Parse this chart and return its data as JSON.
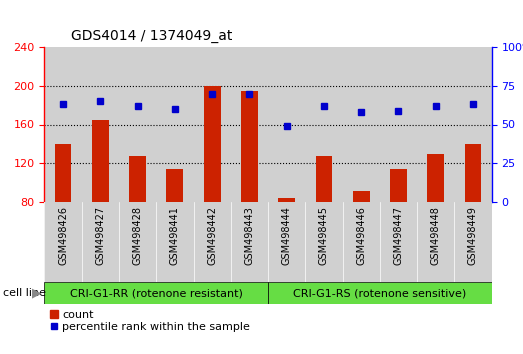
{
  "title": "GDS4014 / 1374049_at",
  "samples": [
    "GSM498426",
    "GSM498427",
    "GSM498428",
    "GSM498441",
    "GSM498442",
    "GSM498443",
    "GSM498444",
    "GSM498445",
    "GSM498446",
    "GSM498447",
    "GSM498448",
    "GSM498449"
  ],
  "counts": [
    140,
    165,
    128,
    114,
    200,
    195,
    84,
    128,
    91,
    114,
    130,
    140
  ],
  "percentile_ranks": [
    63,
    65,
    62,
    60,
    70,
    70,
    49,
    62,
    58,
    59,
    62,
    63
  ],
  "ylim_left": [
    80,
    240
  ],
  "ylim_right": [
    0,
    100
  ],
  "yticks_left": [
    80,
    120,
    160,
    200,
    240
  ],
  "yticks_right": [
    0,
    25,
    50,
    75,
    100
  ],
  "group1_label": "CRI-G1-RR (rotenone resistant)",
  "group2_label": "CRI-G1-RS (rotenone sensitive)",
  "group1_indices": [
    0,
    1,
    2,
    3,
    4,
    5
  ],
  "group2_indices": [
    6,
    7,
    8,
    9,
    10,
    11
  ],
  "bar_color": "#cc2200",
  "dot_color": "#0000cc",
  "bar_bg": "#d0d0d0",
  "green_bg": "#66dd44",
  "legend_count_label": "count",
  "legend_pct_label": "percentile rank within the sample",
  "cell_line_label": "cell line",
  "plot_bg": "#ffffff",
  "figure_bg": "#ffffff"
}
